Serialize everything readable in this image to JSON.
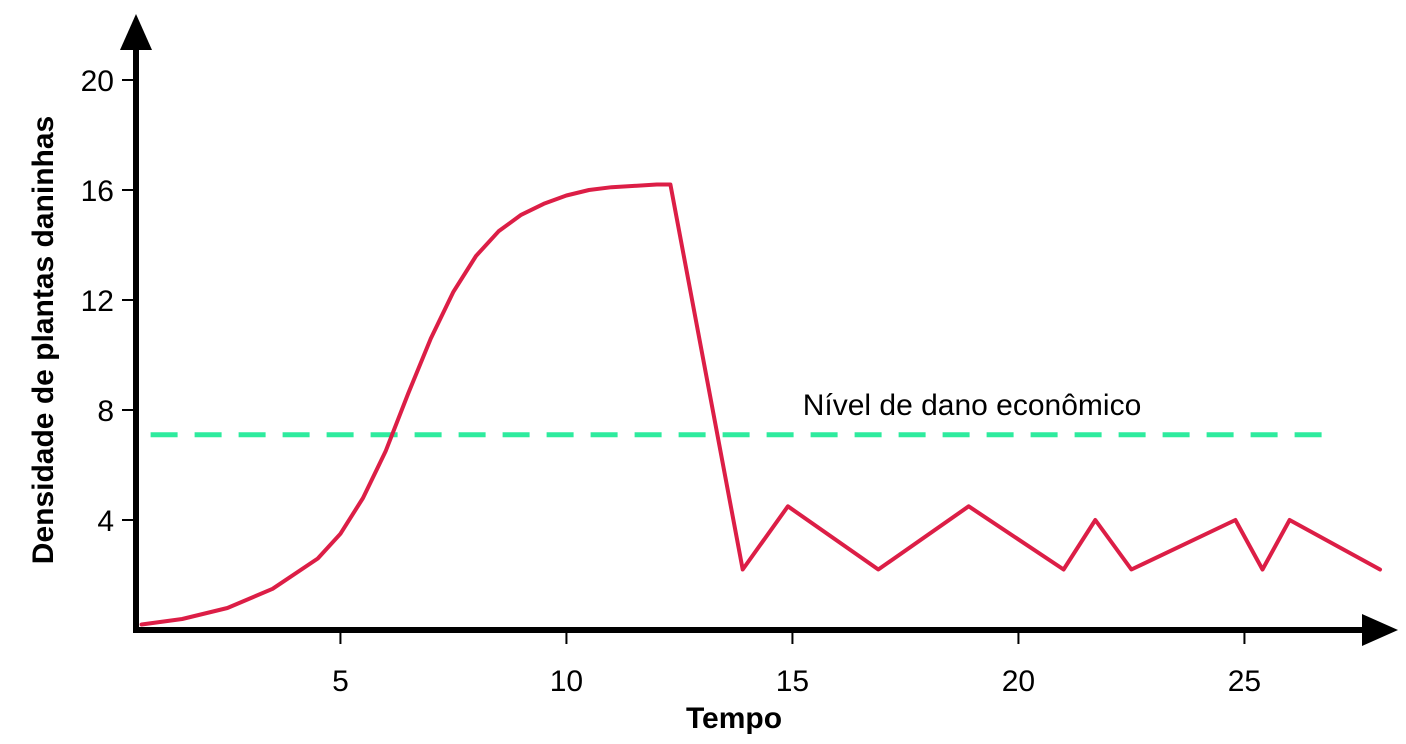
{
  "chart_data": {
    "type": "line",
    "title": "",
    "xlabel": "Tempo",
    "ylabel": "Densidade de plantas daninhas",
    "xlim": [
      0.3,
      28.0
    ],
    "ylim": [
      0,
      20
    ],
    "x_ticks": [
      5,
      10,
      15,
      20,
      25
    ],
    "x_tick_labels": [
      "5",
      "10",
      "15",
      "20",
      "25"
    ],
    "y_ticks": [
      4,
      8,
      12,
      16,
      20
    ],
    "y_tick_labels": [
      "4",
      "8",
      "12",
      "16",
      "20"
    ],
    "grid": false,
    "series": [
      {
        "color": "#dc1e46",
        "x": [
          0.6,
          1.5,
          2.5,
          3.5,
          4.5,
          5.0,
          5.5,
          6.0,
          6.5,
          7.0,
          7.5,
          8.0,
          8.5,
          9.0,
          9.5,
          10.0,
          10.5,
          11.0,
          11.5,
          12.0,
          12.3,
          13.9,
          14.9,
          16.9,
          18.9,
          21.0,
          21.7,
          22.5,
          24.8,
          25.4,
          26.0,
          28.0
        ],
        "y": [
          0.2,
          0.4,
          0.8,
          1.5,
          2.6,
          3.5,
          4.8,
          6.5,
          8.6,
          10.6,
          12.3,
          13.6,
          14.5,
          15.1,
          15.5,
          15.8,
          16.0,
          16.1,
          16.15,
          16.2,
          16.2,
          2.2,
          4.5,
          2.2,
          4.5,
          2.2,
          4.0,
          2.2,
          4.0,
          2.2,
          4.0,
          2.2
        ]
      }
    ],
    "threshold": {
      "label": "Nível de dano econômico",
      "y": 7.1,
      "x_start": 0.8,
      "x_end": 26.9,
      "color": "#2eeb9e",
      "style": "dashed"
    }
  }
}
